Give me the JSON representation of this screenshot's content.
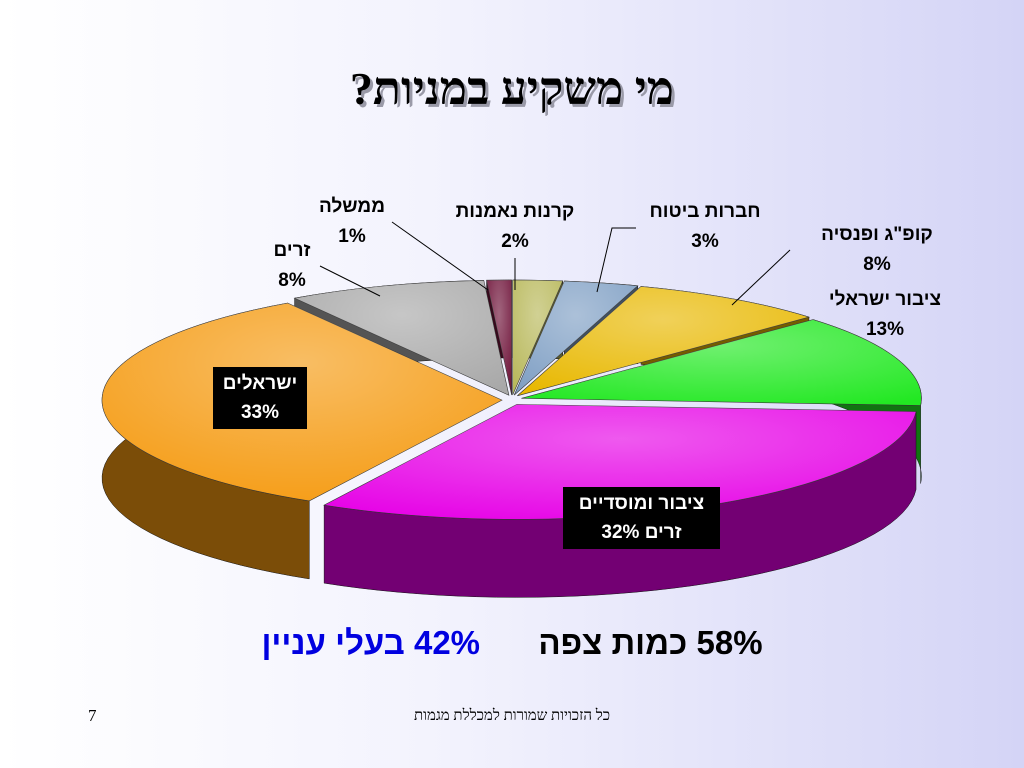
{
  "chart_data": {
    "type": "pie",
    "title": "מי משקיע במניות?",
    "categories": [
      "קרנות נאמנות",
      "חברות ביטוח",
      "קופ\"ג ופנסיה",
      "ציבור ישראלי",
      "ציבור ומוסדיים זרים",
      "ישראלים",
      "זרים",
      "ממשלה"
    ],
    "values": [
      2,
      3,
      8,
      13,
      32,
      33,
      8,
      1
    ],
    "value_labels": [
      "2%",
      "3%",
      "8%",
      "13%",
      "32%",
      "33%",
      "8%",
      "1%"
    ],
    "colors": [
      "#b8b85a",
      "#7f9fc4",
      "#e8b800",
      "#22e822",
      "#e600e6",
      "#f59a10",
      "#a8a8a8",
      "#6e1238"
    ],
    "annotations": {
      "floating": "58% כמות צפה",
      "interested": "42% בעלי עניין"
    }
  },
  "footer": {
    "copyright": "כל הזכויות שמורות למכללת מגמות",
    "page": "7"
  }
}
